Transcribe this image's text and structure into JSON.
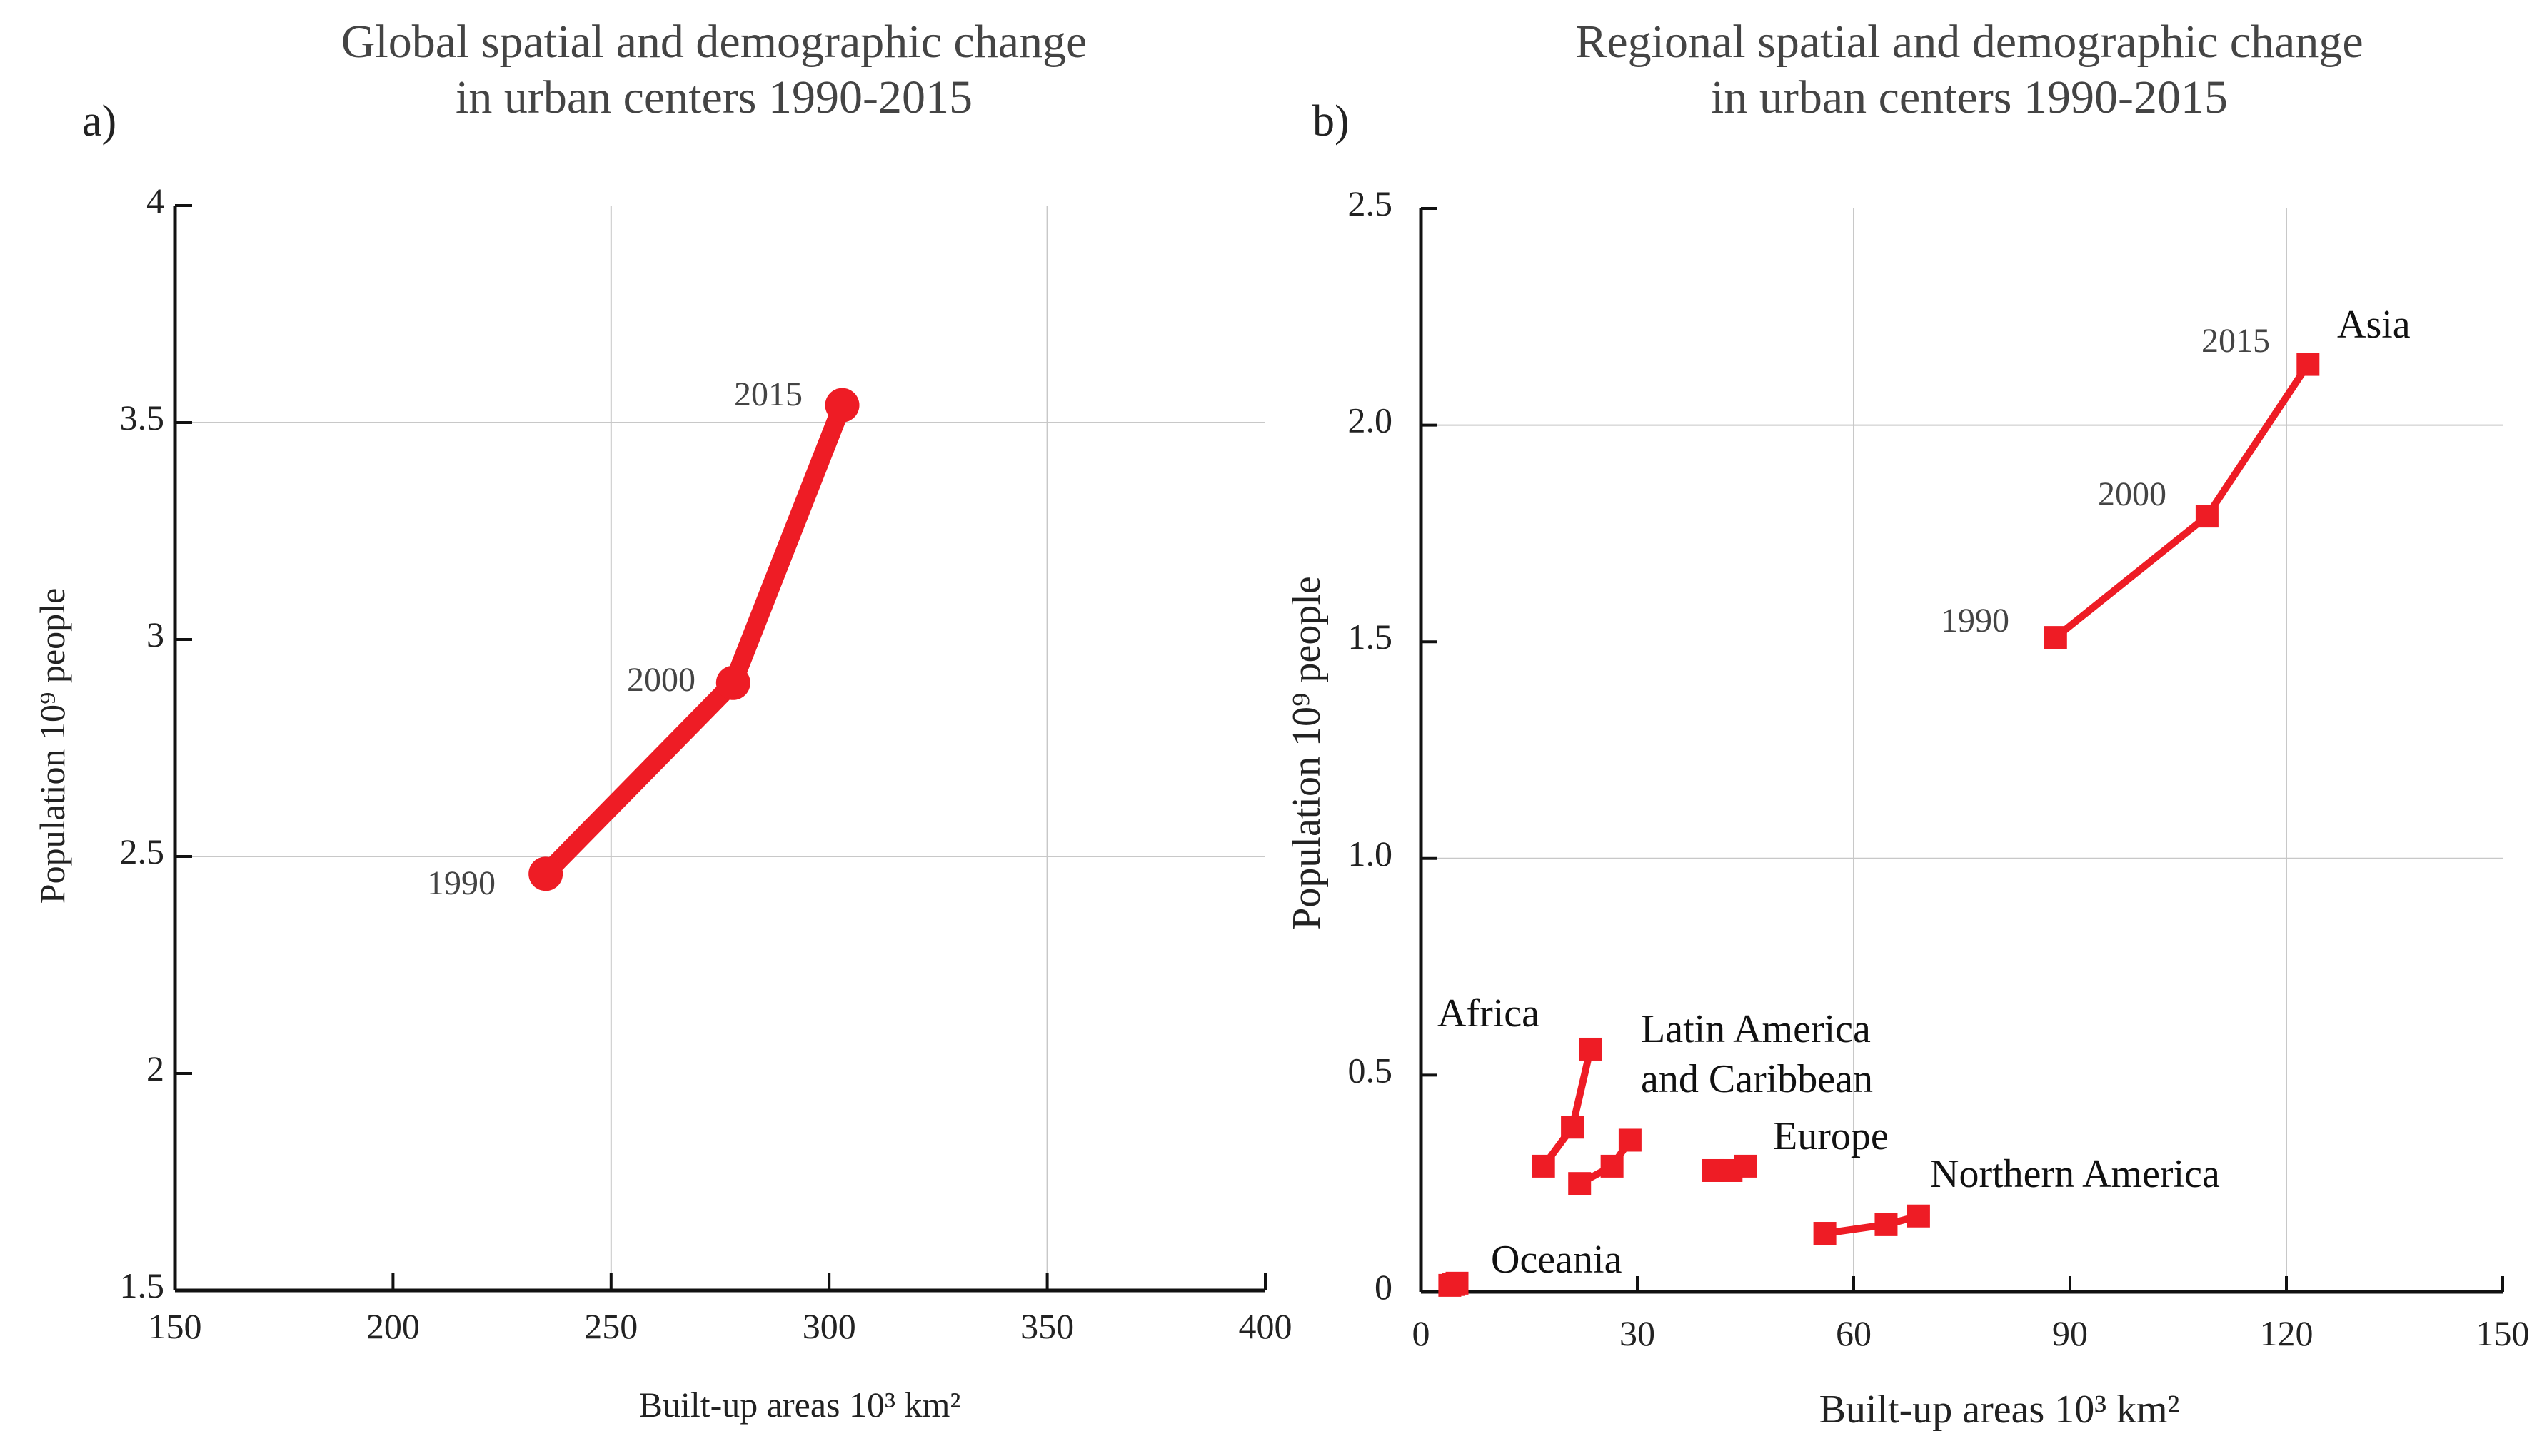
{
  "chart_data": [
    {
      "type": "line",
      "panel": "a)",
      "title": [
        "Global spatial and demographic change",
        "in urban centers 1990-2015"
      ],
      "xlabel": "Built-up areas 10³ km²",
      "ylabel": "Population 10⁹ people",
      "xlim": [
        150,
        400
      ],
      "ylim": [
        1.5,
        4
      ],
      "xticks": [
        150,
        200,
        250,
        300,
        350,
        400
      ],
      "xtick_labels": [
        "150",
        "200",
        "250",
        "300",
        "350",
        "400"
      ],
      "yticks": [
        1.5,
        2,
        2.5,
        3,
        3.5,
        4
      ],
      "ytick_labels": [
        "1.5",
        "2",
        "2.5",
        "3",
        "3.5",
        "4"
      ],
      "xgrid": [
        250,
        350
      ],
      "ygrid": [
        2.5,
        3.5
      ],
      "series": [
        {
          "name": "Global",
          "color": "#ee1c25",
          "marker": "circle",
          "points": [
            {
              "label": "1990",
              "x": 235,
              "y": 2.46
            },
            {
              "label": "2000",
              "x": 278,
              "y": 2.9
            },
            {
              "label": "2015",
              "x": 303,
              "y": 3.54
            }
          ]
        }
      ]
    },
    {
      "type": "line",
      "panel": "b)",
      "title": [
        "Regional spatial and demographic change",
        "in urban centers 1990-2015"
      ],
      "xlabel": "Built-up areas 10³ km²",
      "ylabel": "Population 10⁹ people",
      "xlim": [
        0,
        150
      ],
      "ylim": [
        0,
        2.5
      ],
      "xticks": [
        0,
        30,
        60,
        90,
        120,
        150
      ],
      "xtick_labels": [
        "0",
        "30",
        "60",
        "90",
        "120",
        "150"
      ],
      "yticks": [
        0,
        0.5,
        1.0,
        1.5,
        2.0,
        2.5
      ],
      "ytick_labels": [
        "0",
        "0.5",
        "1.0",
        "1.5",
        "2.0",
        "2.5"
      ],
      "xgrid": [
        60,
        120
      ],
      "ygrid": [
        1.0,
        2.0
      ],
      "series": [
        {
          "name": "Asia",
          "color": "#ee1c25",
          "marker": "square",
          "points": [
            {
              "label": "1990",
              "x": 88,
              "y": 1.51
            },
            {
              "label": "2000",
              "x": 109,
              "y": 1.79
            },
            {
              "label": "2015",
              "x": 123,
              "y": 2.14
            }
          ]
        },
        {
          "name": "Africa",
          "color": "#ee1c25",
          "marker": "square",
          "points": [
            {
              "x": 17,
              "y": 0.29
            },
            {
              "x": 21,
              "y": 0.38
            },
            {
              "x": 23.5,
              "y": 0.56
            }
          ]
        },
        {
          "name": "Latin America and Caribbean",
          "color": "#ee1c25",
          "marker": "square",
          "points": [
            {
              "x": 22,
              "y": 0.25
            },
            {
              "x": 26.5,
              "y": 0.29
            },
            {
              "x": 29,
              "y": 0.35
            }
          ]
        },
        {
          "name": "Europe",
          "color": "#ee1c25",
          "marker": "square",
          "points": [
            {
              "x": 40.5,
              "y": 0.28
            },
            {
              "x": 43,
              "y": 0.28
            },
            {
              "x": 45,
              "y": 0.29
            }
          ]
        },
        {
          "name": "Northern America",
          "color": "#ee1c25",
          "marker": "square",
          "points": [
            {
              "x": 56,
              "y": 0.135
            },
            {
              "x": 64.5,
              "y": 0.155
            },
            {
              "x": 69,
              "y": 0.175
            }
          ]
        },
        {
          "name": "Oceania",
          "color": "#ee1c25",
          "marker": "square",
          "points": [
            {
              "x": 4,
              "y": 0.015
            },
            {
              "x": 4.5,
              "y": 0.017
            },
            {
              "x": 5,
              "y": 0.02
            }
          ]
        }
      ],
      "region_labels": {
        "asia": "Asia",
        "africa": "Africa",
        "latin_line1": "Latin America",
        "latin_line2": "and Caribbean",
        "europe": "Europe",
        "northern_america": "Northern America",
        "oceania": "Oceania"
      }
    }
  ]
}
